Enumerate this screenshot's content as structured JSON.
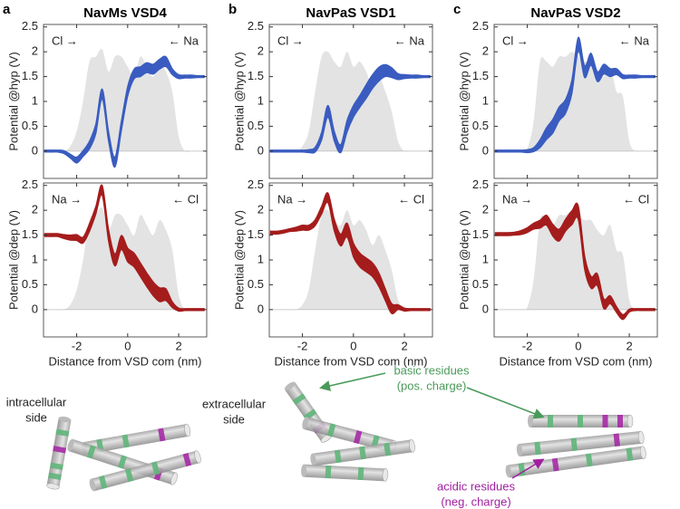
{
  "chart_data": [
    {
      "type": "band",
      "panel_label": "a",
      "title": "NavMs VSD4",
      "ylabel": "Potential @hyp (V)",
      "annotations": [
        "Cl →",
        "← Na"
      ],
      "x": [
        -3.25,
        -3,
        -2.75,
        -2.5,
        -2.25,
        -2,
        -1.75,
        -1.5,
        -1.25,
        -1,
        -0.75,
        -0.5,
        -0.25,
        0,
        0.25,
        0.5,
        0.75,
        1,
        1.25,
        1.5,
        1.75,
        2,
        2.25,
        2.5,
        2.75,
        3
      ],
      "background": {
        "color": "#e3e3e3",
        "values": [
          0,
          0,
          0,
          0,
          0.1,
          0.4,
          1.0,
          1.8,
          1.9,
          2.05,
          1.6,
          1.9,
          1.9,
          1.7,
          1.5,
          1.9,
          1.7,
          1.5,
          1.8,
          1.6,
          1.2,
          0.3,
          0,
          0,
          0,
          0
        ]
      },
      "series": [
        {
          "color": "#3a5cc0",
          "values": [
            0,
            0,
            0,
            -0.02,
            -0.1,
            -0.18,
            -0.05,
            0.12,
            0.45,
            1.15,
            0.3,
            -0.22,
            0.5,
            1.2,
            1.55,
            1.6,
            1.68,
            1.65,
            1.75,
            1.8,
            1.6,
            1.5,
            1.5,
            1.5,
            1.5,
            1.5
          ],
          "errors": [
            0.02,
            0.02,
            0.02,
            0.03,
            0.04,
            0.06,
            0.06,
            0.08,
            0.1,
            0.1,
            0.1,
            0.1,
            0.1,
            0.1,
            0.1,
            0.1,
            0.1,
            0.1,
            0.1,
            0.1,
            0.06,
            0.04,
            0.03,
            0.03,
            0.02,
            0.02
          ]
        }
      ],
      "xlim": [
        -3.3,
        3.1
      ],
      "ylim": [
        -0.55,
        2.55
      ],
      "xticks": [
        -2,
        0,
        2
      ],
      "yticks": [
        0,
        0.5,
        1,
        1.5,
        2,
        2.5
      ]
    },
    {
      "type": "band",
      "panel_label": "b",
      "title": "NavPaS VSD1",
      "ylabel": "Potential @hyp (V)",
      "annotations": [
        "Cl →",
        "← Na"
      ],
      "x": [
        -3.25,
        -3,
        -2.75,
        -2.5,
        -2.25,
        -2,
        -1.75,
        -1.5,
        -1.25,
        -1,
        -0.75,
        -0.5,
        -0.25,
        0,
        0.25,
        0.5,
        0.75,
        1,
        1.25,
        1.5,
        1.75,
        2,
        2.25,
        2.5,
        2.75,
        3
      ],
      "background": {
        "color": "#e3e3e3",
        "values": [
          0,
          0,
          0,
          0,
          0,
          0.1,
          0.4,
          1.2,
          1.9,
          2.0,
          1.8,
          1.7,
          2.0,
          1.7,
          1.8,
          1.6,
          1.3,
          1.5,
          1.2,
          0.8,
          0.2,
          0,
          0,
          0,
          0,
          0
        ]
      },
      "series": [
        {
          "color": "#3a5cc0",
          "values": [
            0,
            0,
            0,
            0,
            0,
            0,
            0,
            0.03,
            0.3,
            0.8,
            0.3,
            0.05,
            0.5,
            0.8,
            1.0,
            1.2,
            1.4,
            1.55,
            1.62,
            1.58,
            1.5,
            1.5,
            1.5,
            1.5,
            1.5,
            1.5
          ],
          "errors": [
            0.02,
            0.02,
            0.02,
            0.02,
            0.02,
            0.02,
            0.03,
            0.05,
            0.08,
            0.12,
            0.1,
            0.08,
            0.12,
            0.12,
            0.12,
            0.14,
            0.14,
            0.14,
            0.12,
            0.1,
            0.06,
            0.04,
            0.03,
            0.03,
            0.02,
            0.02
          ]
        }
      ],
      "xlim": [
        -3.3,
        3.1
      ],
      "ylim": [
        -0.55,
        2.55
      ],
      "xticks": [
        -2,
        0,
        2
      ],
      "yticks": [
        0,
        0.5,
        1,
        1.5,
        2,
        2.5
      ]
    },
    {
      "type": "band",
      "panel_label": "c",
      "title": "NavPaS VSD2",
      "ylabel": "Potential @hyp (V)",
      "annotations": [
        "Cl →",
        "← Na"
      ],
      "x": [
        -3.25,
        -3,
        -2.75,
        -2.5,
        -2.25,
        -2,
        -1.75,
        -1.5,
        -1.25,
        -1,
        -0.75,
        -0.5,
        -0.25,
        0,
        0.25,
        0.5,
        0.75,
        1,
        1.25,
        1.5,
        1.75,
        2,
        2.25,
        2.5,
        2.75,
        3
      ],
      "background": {
        "color": "#e3e3e3",
        "values": [
          0,
          0,
          0,
          0,
          0,
          0.05,
          0.6,
          1.8,
          1.8,
          1.7,
          1.9,
          1.9,
          2.0,
          1.9,
          1.8,
          1.8,
          1.6,
          1.5,
          1.7,
          1.2,
          1.1,
          0.2,
          0,
          0,
          0,
          0
        ]
      },
      "series": [
        {
          "color": "#3a5cc0",
          "values": [
            0,
            0,
            0,
            0,
            0,
            0,
            0.03,
            0.15,
            0.35,
            0.5,
            0.75,
            0.9,
            1.3,
            2.15,
            1.6,
            1.85,
            1.5,
            1.65,
            1.58,
            1.6,
            1.5,
            1.5,
            1.5,
            1.5,
            1.5,
            1.5
          ],
          "errors": [
            0.02,
            0.02,
            0.02,
            0.02,
            0.02,
            0.03,
            0.04,
            0.08,
            0.12,
            0.14,
            0.14,
            0.14,
            0.14,
            0.14,
            0.12,
            0.12,
            0.1,
            0.1,
            0.08,
            0.06,
            0.04,
            0.03,
            0.03,
            0.02,
            0.02,
            0.02
          ]
        }
      ],
      "xlim": [
        -3.3,
        3.1
      ],
      "ylim": [
        -0.55,
        2.55
      ],
      "xticks": [
        -2,
        0,
        2
      ],
      "yticks": [
        0,
        0.5,
        1,
        1.5,
        2,
        2.5
      ]
    },
    {
      "type": "band",
      "ylabel": "Potential @dep (V)",
      "xlabel": "Distance from VSD com (nm)",
      "annotations": [
        "Na →",
        "← Cl"
      ],
      "x": [
        -3.25,
        -3,
        -2.75,
        -2.5,
        -2.25,
        -2,
        -1.75,
        -1.5,
        -1.25,
        -1,
        -0.75,
        -0.5,
        -0.25,
        0,
        0.25,
        0.5,
        0.75,
        1,
        1.25,
        1.5,
        1.75,
        2,
        2.25,
        2.5,
        2.75,
        3
      ],
      "background": {
        "color": "#e3e3e3",
        "values": [
          0,
          0,
          0,
          0,
          0.1,
          0.4,
          1.0,
          1.8,
          1.9,
          2.05,
          1.6,
          1.9,
          1.9,
          1.7,
          1.5,
          1.9,
          1.7,
          1.5,
          1.8,
          1.6,
          1.2,
          0.3,
          0,
          0,
          0,
          0
        ]
      },
      "series": [
        {
          "color": "#a51c1c",
          "values": [
            1.5,
            1.5,
            1.5,
            1.47,
            1.45,
            1.45,
            1.4,
            1.65,
            2.0,
            2.4,
            1.5,
            1.0,
            1.35,
            1.1,
            1.0,
            0.8,
            0.6,
            0.42,
            0.3,
            0.3,
            0.1,
            0,
            0,
            0,
            0,
            0
          ],
          "errors": [
            0.03,
            0.03,
            0.03,
            0.04,
            0.05,
            0.06,
            0.06,
            0.08,
            0.08,
            0.1,
            0.12,
            0.12,
            0.14,
            0.14,
            0.14,
            0.14,
            0.14,
            0.14,
            0.14,
            0.12,
            0.06,
            0.03,
            0.02,
            0.02,
            0.02,
            0.02
          ]
        }
      ],
      "xlim": [
        -3.3,
        3.1
      ],
      "ylim": [
        -0.55,
        2.55
      ],
      "xticks": [
        -2,
        0,
        2
      ],
      "yticks": [
        0,
        0.5,
        1,
        1.5,
        2,
        2.5
      ]
    },
    {
      "type": "band",
      "ylabel": "Potential @dep (V)",
      "xlabel": "Distance from VSD com (nm)",
      "annotations": [
        "Na →",
        "← Cl"
      ],
      "x": [
        -3.25,
        -3,
        -2.75,
        -2.5,
        -2.25,
        -2,
        -1.75,
        -1.5,
        -1.25,
        -1,
        -0.75,
        -0.5,
        -0.25,
        0,
        0.25,
        0.5,
        0.75,
        1,
        1.25,
        1.5,
        1.75,
        2,
        2.25,
        2.5,
        2.75,
        3
      ],
      "background": {
        "color": "#e3e3e3",
        "values": [
          0,
          0,
          0,
          0,
          0,
          0.1,
          0.4,
          1.2,
          1.9,
          2.0,
          1.8,
          1.7,
          2.0,
          1.7,
          1.8,
          1.6,
          1.3,
          1.5,
          1.2,
          0.8,
          0.2,
          0,
          0,
          0,
          0,
          0
        ]
      },
      "series": [
        {
          "color": "#a51c1c",
          "values": [
            1.55,
            1.55,
            1.57,
            1.6,
            1.62,
            1.65,
            1.65,
            1.75,
            2.0,
            2.25,
            1.7,
            1.4,
            1.6,
            1.2,
            1.0,
            0.9,
            0.8,
            0.6,
            0.3,
            0.02,
            0.05,
            0,
            0,
            0,
            0,
            0
          ],
          "errors": [
            0.03,
            0.03,
            0.03,
            0.03,
            0.04,
            0.05,
            0.05,
            0.06,
            0.08,
            0.1,
            0.12,
            0.12,
            0.14,
            0.14,
            0.14,
            0.14,
            0.14,
            0.14,
            0.12,
            0.1,
            0.05,
            0.03,
            0.02,
            0.02,
            0.02,
            0.02
          ]
        }
      ],
      "xlim": [
        -3.3,
        3.1
      ],
      "ylim": [
        -0.55,
        2.55
      ],
      "xticks": [
        -2,
        0,
        2
      ],
      "yticks": [
        0,
        0.5,
        1,
        1.5,
        2,
        2.5
      ]
    },
    {
      "type": "band",
      "ylabel": "Potential @dep (V)",
      "xlabel": "Distance from VSD com (nm)",
      "annotations": [
        "Na →",
        "← Cl"
      ],
      "x": [
        -3.25,
        -3,
        -2.75,
        -2.5,
        -2.25,
        -2,
        -1.75,
        -1.5,
        -1.25,
        -1,
        -0.75,
        -0.5,
        -0.25,
        0,
        0.25,
        0.5,
        0.75,
        1,
        1.25,
        1.5,
        1.75,
        2,
        2.25,
        2.5,
        2.75,
        3
      ],
      "background": {
        "color": "#e3e3e3",
        "values": [
          0,
          0,
          0,
          0,
          0,
          0.05,
          0.6,
          1.8,
          1.8,
          1.7,
          1.9,
          1.9,
          2.0,
          1.9,
          1.8,
          1.8,
          1.6,
          1.5,
          1.7,
          1.2,
          1.1,
          0.2,
          0,
          0,
          0,
          0
        ]
      },
      "series": [
        {
          "color": "#a51c1c",
          "values": [
            1.52,
            1.52,
            1.52,
            1.53,
            1.55,
            1.6,
            1.68,
            1.72,
            1.8,
            1.6,
            1.5,
            1.7,
            1.85,
            1.95,
            0.95,
            0.55,
            0.6,
            0.12,
            0.2,
            0,
            -0.15,
            -0.02,
            0,
            0,
            0,
            0
          ],
          "errors": [
            0.03,
            0.03,
            0.03,
            0.03,
            0.04,
            0.05,
            0.06,
            0.08,
            0.1,
            0.12,
            0.12,
            0.12,
            0.14,
            0.14,
            0.14,
            0.12,
            0.12,
            0.1,
            0.08,
            0.06,
            0.05,
            0.03,
            0.02,
            0.02,
            0.02,
            0.02
          ]
        }
      ],
      "xlim": [
        -3.3,
        3.1
      ],
      "ylim": [
        -0.55,
        2.55
      ],
      "xticks": [
        -2,
        0,
        2
      ],
      "yticks": [
        0,
        0.5,
        1,
        1.5,
        2,
        2.5
      ]
    }
  ],
  "figure_labels": {
    "intracellular_side": [
      "intracellular",
      "side"
    ],
    "extracellular_side": [
      "extracellular",
      "side"
    ],
    "basic_residues": [
      "basic residues",
      "(pos. charge)"
    ],
    "acidic_residues": [
      "acidic residues",
      "(neg. charge)"
    ]
  }
}
